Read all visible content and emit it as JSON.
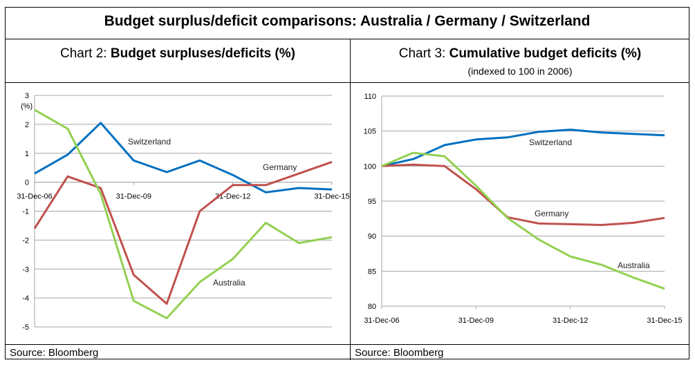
{
  "title": "Budget surplus/deficit comparisons: Australia / Germany / Switzerland",
  "source_left": "Source: Bloomberg",
  "source_right": "Source: Bloomberg",
  "colors": {
    "Switzerland": "#0070c0",
    "Germany": "#c0504d",
    "Australia": "#92d050"
  },
  "chart_data": [
    {
      "type": "line",
      "prefix": "Chart 2: ",
      "title": "Budget surpluses/deficits (%)",
      "ylabel": "(%)",
      "x": [
        "2006",
        "2007",
        "2008",
        "2009",
        "2010",
        "2011",
        "2012",
        "2013",
        "2014",
        "2015"
      ],
      "xticks": [
        "31-Dec-06",
        "31-Dec-09",
        "31-Dec-12",
        "31-Dec-15"
      ],
      "ylim": [
        -5,
        3
      ],
      "yticks": [
        "3",
        "2",
        "1",
        "0",
        "-1",
        "-2",
        "-3",
        "-4",
        "-5"
      ],
      "grid": true,
      "series": [
        {
          "name": "Switzerland",
          "values": [
            0.3,
            0.95,
            2.05,
            0.75,
            0.35,
            0.75,
            0.25,
            -0.35,
            -0.2,
            -0.25
          ]
        },
        {
          "name": "Germany",
          "values": [
            -1.6,
            0.2,
            -0.2,
            -3.2,
            -4.2,
            -1.0,
            -0.1,
            -0.1,
            0.3,
            0.7
          ]
        },
        {
          "name": "Australia",
          "values": [
            2.5,
            1.85,
            -0.4,
            -4.1,
            -4.7,
            -3.45,
            -2.65,
            -1.4,
            -2.1,
            -1.9
          ]
        }
      ]
    },
    {
      "type": "line",
      "prefix": "Chart 3: ",
      "title": "Cumulative budget deficits (%)",
      "subtitle": "(indexed to 100 in 2006)",
      "x": [
        "2006",
        "2007",
        "2008",
        "2009",
        "2010",
        "2011",
        "2012",
        "2013",
        "2014",
        "2015"
      ],
      "xticks": [
        "31-Dec-06",
        "31-Dec-09",
        "31-Dec-12",
        "31-Dec-15"
      ],
      "ylim": [
        80,
        110
      ],
      "yticks": [
        "110",
        "105",
        "100",
        "95",
        "90",
        "85",
        "80"
      ],
      "grid": true,
      "series": [
        {
          "name": "Switzerland",
          "values": [
            100,
            101,
            103,
            103.8,
            104.1,
            104.9,
            105.2,
            104.8,
            104.6,
            104.4
          ]
        },
        {
          "name": "Germany",
          "values": [
            100,
            100.2,
            100,
            96.7,
            92.7,
            91.8,
            91.7,
            91.6,
            91.9,
            92.6
          ]
        },
        {
          "name": "Australia",
          "values": [
            100,
            101.9,
            101.4,
            97.2,
            92.6,
            89.5,
            87.1,
            85.9,
            84.1,
            82.5
          ]
        }
      ]
    }
  ]
}
